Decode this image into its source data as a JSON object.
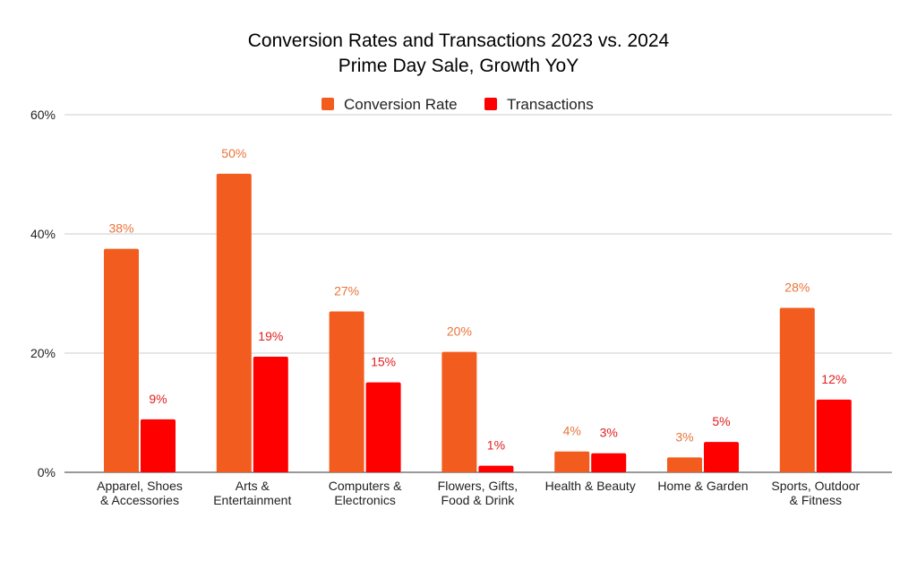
{
  "chart_data": {
    "type": "bar",
    "title": "Conversion Rates and Transactions 2023 vs. 2024",
    "subtitle": "Prime Day Sale, Growth YoY",
    "xlabel": "",
    "ylabel": "",
    "ylim": [
      0,
      60
    ],
    "yticks": [
      "0%",
      "20%",
      "40%",
      "60%"
    ],
    "ytick_values": [
      0,
      20,
      40,
      60
    ],
    "grid": true,
    "legend_position": "top",
    "categories": [
      [
        "Apparel, Shoes",
        "& Accessories"
      ],
      [
        "Arts &",
        "Entertainment"
      ],
      [
        "Computers &",
        "Electronics"
      ],
      [
        "Flowers, Gifts,",
        "Food & Drink"
      ],
      [
        "Health & Beauty"
      ],
      [
        "Home & Garden"
      ],
      [
        "Sports, Outdoor",
        "& Fitness"
      ]
    ],
    "series": [
      {
        "name": "Conversion Rate",
        "color": "#F25C1E",
        "label_color": "#E8743A",
        "values": [
          37.5,
          50.1,
          27,
          20.2,
          3.5,
          2.5,
          27.6
        ],
        "labels": [
          "38%",
          "50%",
          "27%",
          "20%",
          "4%",
          "3%",
          "28%"
        ]
      },
      {
        "name": "Transactions",
        "color": "#FF0000",
        "label_color": "#E0201F",
        "values": [
          8.9,
          19.4,
          15.1,
          1.1,
          3.2,
          5.1,
          12.2
        ],
        "labels": [
          "9%",
          "19%",
          "15%",
          "1%",
          "3%",
          "5%",
          "12%"
        ]
      }
    ]
  }
}
